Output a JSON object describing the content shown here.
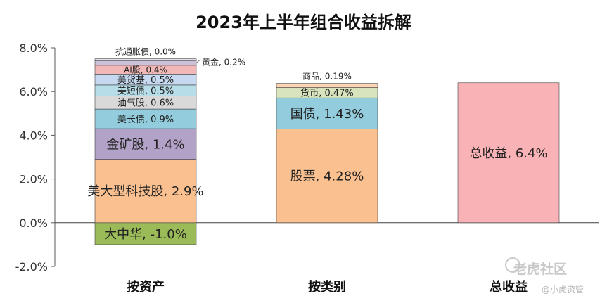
{
  "chart_data": {
    "type": "bar",
    "title": "2023年上半年组合收益拆解",
    "y_axis": {
      "ylim": [
        -2.0,
        8.0
      ],
      "ticks": [
        8.0,
        6.0,
        4.0,
        2.0,
        0.0,
        -2.0
      ],
      "tick_labels": [
        "8.0%",
        "6.0%",
        "4.0%",
        "2.0%",
        "0.0%",
        "-2.0%"
      ],
      "grid": false
    },
    "categories": [
      "按资产",
      "按类别",
      "总收益"
    ],
    "stacks": [
      {
        "category": "按资产",
        "segments": [
          {
            "label": "大中华, -1.0%",
            "value": -1.0,
            "color": "#9bbb59"
          },
          {
            "label": "美大型科技股, 2.9%",
            "value": 2.9,
            "color": "#fac090"
          },
          {
            "label": "金矿股, 1.4%",
            "value": 1.4,
            "color": "#b3a2c7"
          },
          {
            "label": "美长债, 0.9%",
            "value": 0.9,
            "color": "#93cddd"
          },
          {
            "label": "油气股, 0.6%",
            "value": 0.6,
            "color": "#d9d9d9"
          },
          {
            "label": "美短债, 0.5%",
            "value": 0.5,
            "color": "#b7dee8"
          },
          {
            "label": "美货基, 0.5%",
            "value": 0.5,
            "color": "#c6d9f1"
          },
          {
            "label": "AI股, 0.4%",
            "value": 0.4,
            "color": "#f2b8b8"
          },
          {
            "label": "黄金, 0.2%",
            "value": 0.2,
            "color": "#ccc1da"
          },
          {
            "label": "抗通胀债, 0.0%",
            "value": 0.0,
            "color": "#e6e0ec"
          }
        ]
      },
      {
        "category": "按类别",
        "segments": [
          {
            "label": "股票, 4.28%",
            "value": 4.28,
            "color": "#fac090"
          },
          {
            "label": "国债, 1.43%",
            "value": 1.43,
            "color": "#93cddd"
          },
          {
            "label": "货币, 0.47%",
            "value": 0.47,
            "color": "#d7e4bd"
          },
          {
            "label": "商品, 0.19%",
            "value": 0.19,
            "color": "#fcd5b5"
          }
        ]
      },
      {
        "category": "总收益",
        "segments": [
          {
            "label": "总收益, 6.4%",
            "value": 6.4,
            "color": "#f9b3b6"
          }
        ]
      }
    ]
  },
  "watermark": {
    "main": "老虎社区",
    "sub": "@小虎资管"
  }
}
